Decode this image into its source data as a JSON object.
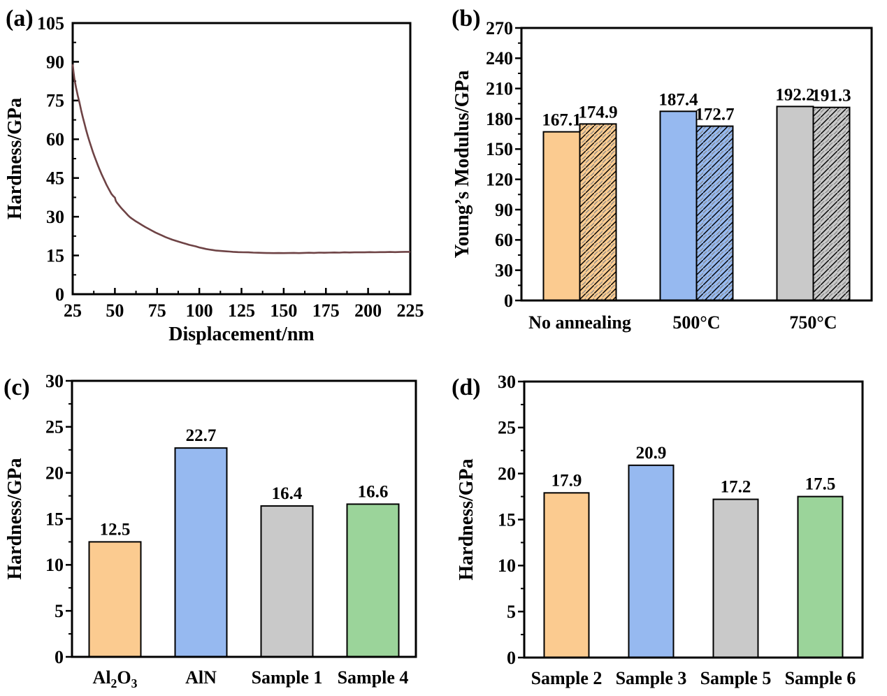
{
  "page": {
    "background": "#ffffff"
  },
  "palette": {
    "orange": "#fbcb90",
    "blue": "#96b9f0",
    "gray": "#c9c9c9",
    "green": "#9bd49a",
    "line_maroon": "#6e4345",
    "axis_black": "#000000"
  },
  "chart_data": [
    {
      "panel_tag": "(a)",
      "type": "line",
      "title": "",
      "xlabel": "Displacement/nm",
      "ylabel": "Hardness/GPa",
      "xlim": [
        25,
        225
      ],
      "ylim": [
        0,
        105
      ],
      "xticks": [
        25,
        50,
        75,
        100,
        125,
        150,
        175,
        200,
        225
      ],
      "yticks": [
        0,
        15,
        30,
        45,
        60,
        75,
        90,
        105
      ],
      "grid": false,
      "legend": "none",
      "tick_direction": "in",
      "minor_ticks": true,
      "line_color": "#6e4345",
      "series": [
        {
          "name": "Hardness vs Displacement",
          "points": [
            [
              25,
              89
            ],
            [
              25.5,
              86
            ],
            [
              26,
              83.5
            ],
            [
              27,
              80
            ],
            [
              28,
              77
            ],
            [
              29,
              74.2
            ],
            [
              30,
              71.2
            ],
            [
              31,
              68.5
            ],
            [
              32,
              66
            ],
            [
              33,
              63.5
            ],
            [
              34,
              61.2
            ],
            [
              35,
              59
            ],
            [
              36,
              57
            ],
            [
              37,
              55
            ],
            [
              38,
              53.2
            ],
            [
              39,
              51.5
            ],
            [
              40,
              49.8
            ],
            [
              41,
              48.2
            ],
            [
              42,
              46.6
            ],
            [
              43,
              45.2
            ],
            [
              44,
              43.8
            ],
            [
              45,
              42.4
            ],
            [
              46,
              41.2
            ],
            [
              47,
              40
            ],
            [
              48,
              38.8
            ],
            [
              49,
              38
            ],
            [
              50,
              37.4
            ],
            [
              50.5,
              36.2
            ],
            [
              51,
              35.6
            ],
            [
              52,
              34.8
            ],
            [
              53,
              34
            ],
            [
              54,
              33.2
            ],
            [
              55,
              32.5
            ],
            [
              56,
              31.8
            ],
            [
              57,
              31.1
            ],
            [
              58,
              30.4
            ],
            [
              59,
              29.8
            ],
            [
              60,
              29.3
            ],
            [
              62,
              28.4
            ],
            [
              64,
              27.6
            ],
            [
              66,
              26.8
            ],
            [
              68,
              26
            ],
            [
              70,
              25.3
            ],
            [
              72,
              24.6
            ],
            [
              74,
              23.9
            ],
            [
              76,
              23.3
            ],
            [
              78,
              22.7
            ],
            [
              80,
              22.1
            ],
            [
              82,
              21.6
            ],
            [
              84,
              21.1
            ],
            [
              86,
              20.7
            ],
            [
              88,
              20.3
            ],
            [
              90,
              19.9
            ],
            [
              92,
              19.5
            ],
            [
              94,
              19.1
            ],
            [
              96,
              18.8
            ],
            [
              98,
              18.5
            ],
            [
              100,
              18.1
            ],
            [
              102,
              17.8
            ],
            [
              104,
              17.5
            ],
            [
              106,
              17.3
            ],
            [
              108,
              17.1
            ],
            [
              110,
              16.9
            ],
            [
              112,
              16.8
            ],
            [
              114,
              16.7
            ],
            [
              116,
              16.6
            ],
            [
              118,
              16.5
            ],
            [
              120,
              16.4
            ],
            [
              123,
              16.3
            ],
            [
              126,
              16.25
            ],
            [
              129,
              16.2
            ],
            [
              132,
              16.1
            ],
            [
              135,
              16.05
            ],
            [
              138,
              16
            ],
            [
              141,
              15.95
            ],
            [
              144,
              15.9
            ],
            [
              147,
              15.95
            ],
            [
              150,
              15.9
            ],
            [
              153,
              15.95
            ],
            [
              156,
              16
            ],
            [
              159,
              15.9
            ],
            [
              162,
              16
            ],
            [
              165,
              16.05
            ],
            [
              168,
              16
            ],
            [
              171,
              16.1
            ],
            [
              174,
              16.05
            ],
            [
              177,
              16.1
            ],
            [
              180,
              16.15
            ],
            [
              183,
              16.1
            ],
            [
              186,
              16.2
            ],
            [
              189,
              16.15
            ],
            [
              192,
              16.2
            ],
            [
              195,
              16.25
            ],
            [
              198,
              16.2
            ],
            [
              201,
              16.3
            ],
            [
              204,
              16.25
            ],
            [
              207,
              16.3
            ],
            [
              210,
              16.3
            ],
            [
              213,
              16.35
            ],
            [
              216,
              16.3
            ],
            [
              219,
              16.35
            ],
            [
              222,
              16.4
            ],
            [
              225,
              16.4
            ]
          ]
        }
      ]
    },
    {
      "panel_tag": "(b)",
      "type": "bar",
      "title": "",
      "xlabel": "",
      "ylabel": "Young’s Modulus/GPa",
      "ylim": [
        0,
        270
      ],
      "yticks": [
        0,
        30,
        60,
        90,
        120,
        150,
        180,
        210,
        240,
        270
      ],
      "grid": false,
      "legend": "none",
      "tick_direction": "out",
      "minor_ticks": true,
      "value_labels": true,
      "categories": [
        "No annealing",
        "500°C",
        "750°C"
      ],
      "bar_colors": [
        "#fbcb90",
        "#96b9f0",
        "#c9c9c9"
      ],
      "series": [
        {
          "name": "solid",
          "hatch": false,
          "values": [
            167.1,
            187.4,
            192.2
          ]
        },
        {
          "name": "hatched",
          "hatch": true,
          "values": [
            174.9,
            172.7,
            191.3
          ]
        }
      ]
    },
    {
      "panel_tag": "(c)",
      "type": "bar",
      "title": "",
      "xlabel": "",
      "ylabel": "Hardness/GPa",
      "ylim": [
        0,
        30
      ],
      "yticks": [
        0,
        5,
        10,
        15,
        20,
        25,
        30
      ],
      "grid": false,
      "legend": "none",
      "tick_direction": "out",
      "minor_ticks": true,
      "value_labels": true,
      "categories": [
        "Al₂O₃",
        "AlN",
        "Sample 1",
        "Sample 4"
      ],
      "bar_colors": [
        "#fbcb90",
        "#96b9f0",
        "#c9c9c9",
        "#9bd49a"
      ],
      "values": [
        12.5,
        22.7,
        16.4,
        16.6
      ]
    },
    {
      "panel_tag": "(d)",
      "type": "bar",
      "title": "",
      "xlabel": "",
      "ylabel": "Hardness/GPa",
      "ylim": [
        0,
        30
      ],
      "yticks": [
        0,
        5,
        10,
        15,
        20,
        25,
        30
      ],
      "grid": false,
      "legend": "none",
      "tick_direction": "out",
      "minor_ticks": true,
      "value_labels": true,
      "categories": [
        "Sample 2",
        "Sample 3",
        "Sample 5",
        "Sample 6"
      ],
      "bar_colors": [
        "#fbcb90",
        "#96b9f0",
        "#c9c9c9",
        "#9bd49a"
      ],
      "values": [
        17.9,
        20.9,
        17.2,
        17.5
      ]
    }
  ]
}
